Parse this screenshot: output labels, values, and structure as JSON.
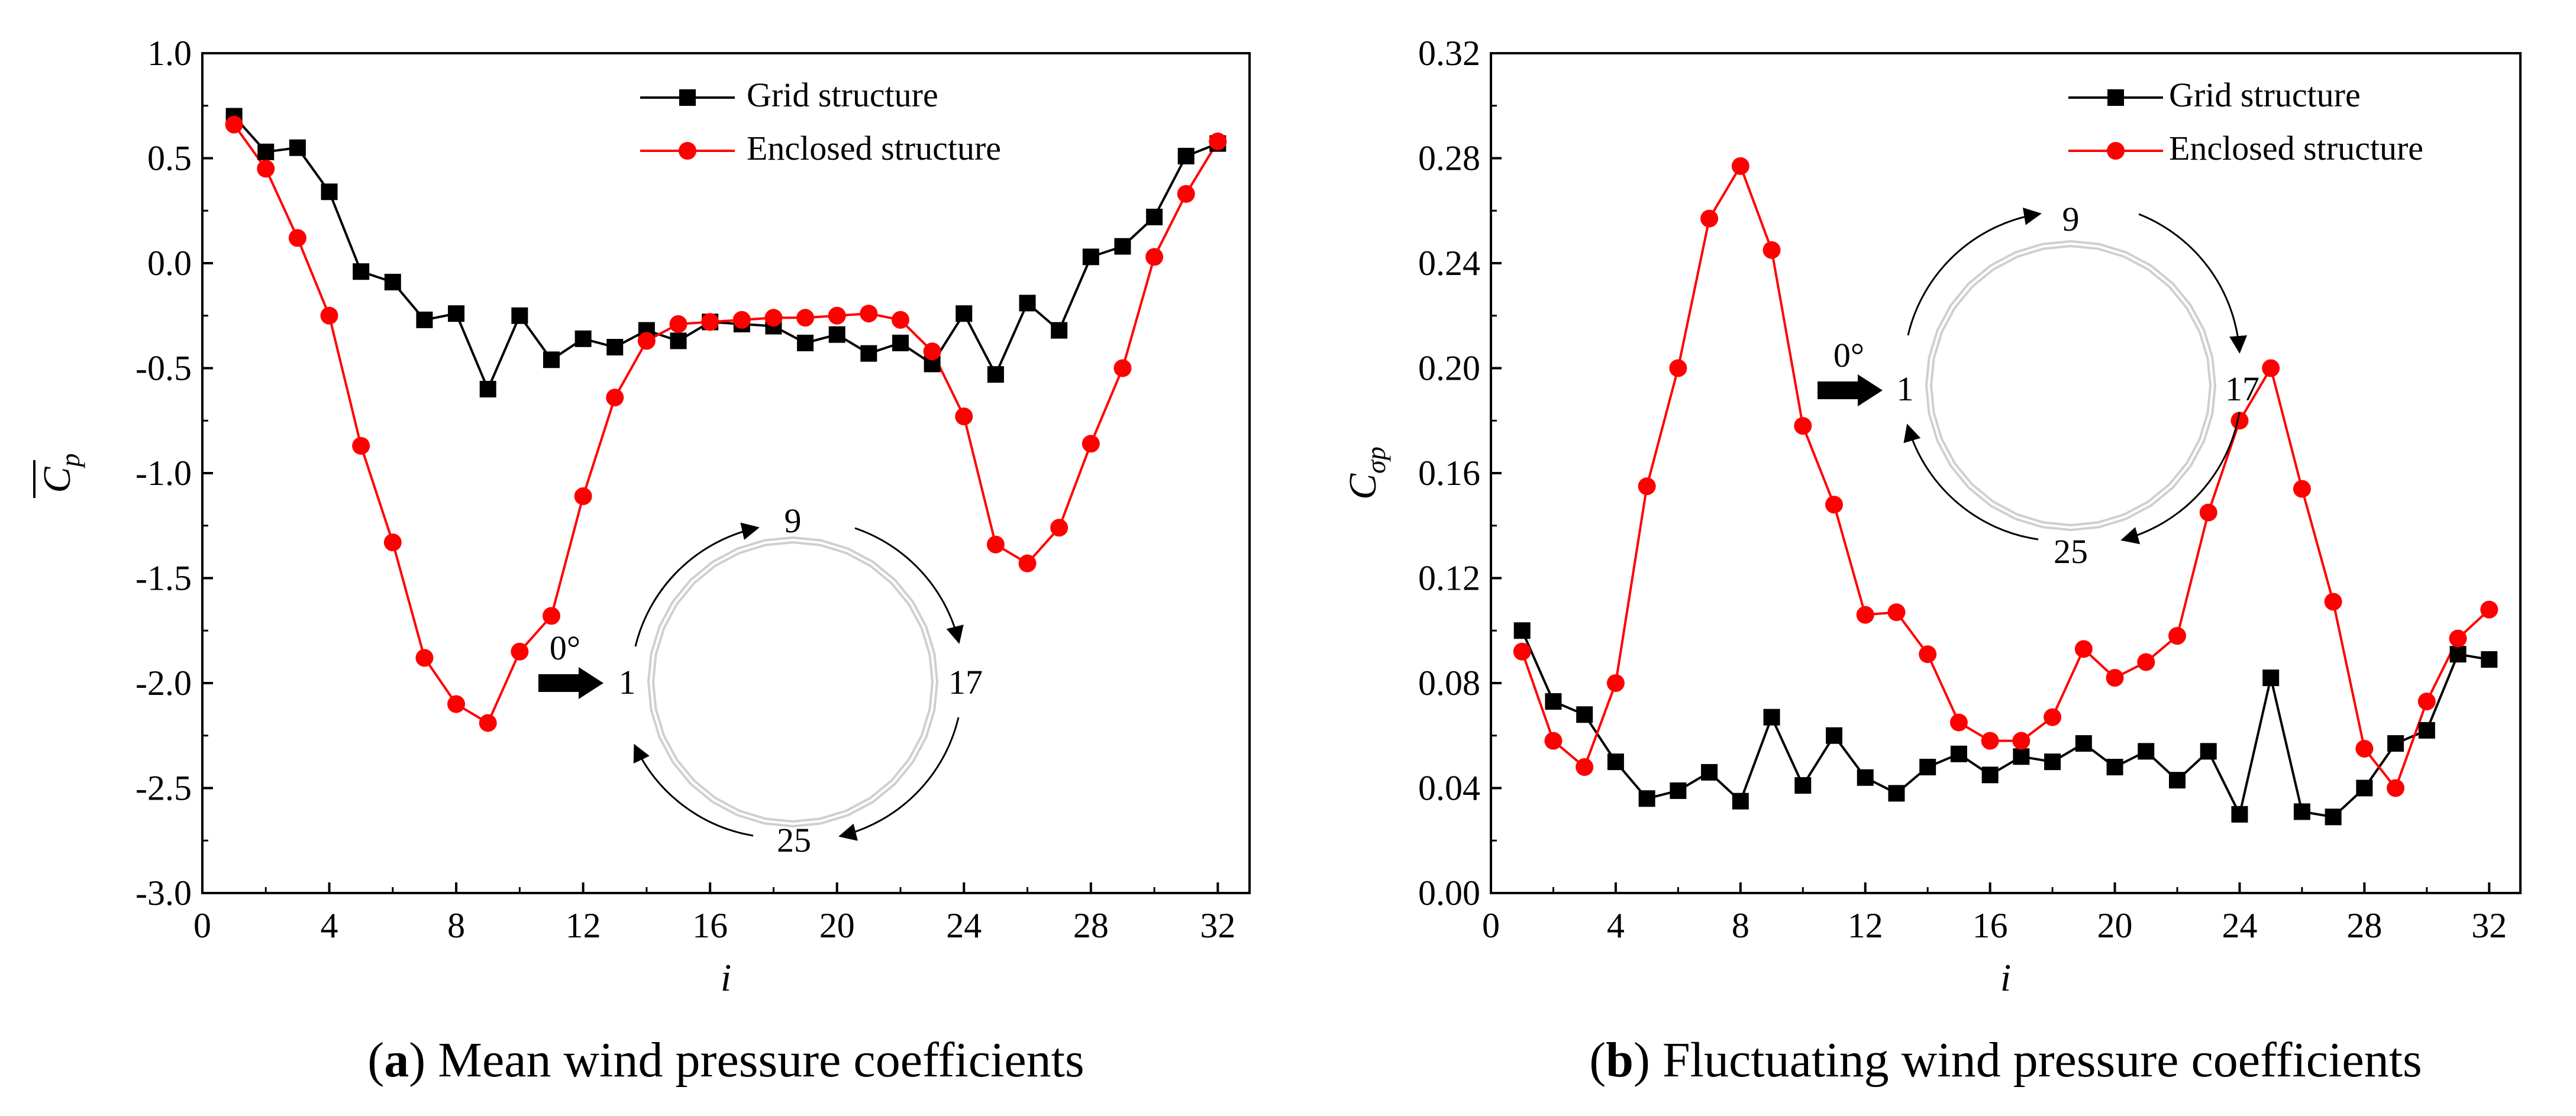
{
  "colors": {
    "grid_series": "#000000",
    "enclosed_series": "#ff0000",
    "ring": "#cfcfcf",
    "axis": "#000000"
  },
  "chart_data": [
    {
      "type": "line",
      "panel_label": "a",
      "caption": "Mean wind pressure coefficients",
      "xlabel": "i",
      "ylabel_symbol": "C",
      "ylabel_subscript": "p",
      "ylabel_overbar": true,
      "xlim": [
        0,
        33
      ],
      "ylim": [
        -3.0,
        1.0
      ],
      "xticks": [
        0,
        4,
        8,
        12,
        16,
        20,
        24,
        28,
        32
      ],
      "yticks": [
        -3.0,
        -2.5,
        -2.0,
        -1.5,
        -1.0,
        -0.5,
        0.0,
        0.5,
        1.0
      ],
      "ytick_labels": [
        "-3.0",
        "-2.5",
        "-2.0",
        "-1.5",
        "-1.0",
        "-0.5",
        "0.0",
        "0.5",
        "1.0"
      ],
      "legend_position": "top-right",
      "x": [
        1,
        2,
        3,
        4,
        5,
        6,
        7,
        8,
        9,
        10,
        11,
        12,
        13,
        14,
        15,
        16,
        17,
        18,
        19,
        20,
        21,
        22,
        23,
        24,
        25,
        26,
        27,
        28,
        29,
        30,
        31,
        32
      ],
      "series": [
        {
          "name": "Grid structure",
          "color": "#000000",
          "marker": "square",
          "values": [
            0.7,
            0.53,
            0.55,
            0.34,
            -0.04,
            -0.09,
            -0.27,
            -0.24,
            -0.6,
            -0.25,
            -0.46,
            -0.36,
            -0.4,
            -0.32,
            -0.37,
            -0.28,
            -0.29,
            -0.3,
            -0.38,
            -0.34,
            -0.43,
            -0.38,
            -0.48,
            -0.24,
            -0.53,
            -0.19,
            -0.32,
            0.03,
            0.08,
            0.22,
            0.51,
            0.57
          ]
        },
        {
          "name": "Enclosed structure",
          "color": "#ff0000",
          "marker": "circle",
          "values": [
            0.66,
            0.45,
            0.12,
            -0.25,
            -0.87,
            -1.33,
            -1.88,
            -2.1,
            -2.19,
            -1.85,
            -1.68,
            -1.11,
            -0.64,
            -0.37,
            -0.29,
            -0.28,
            -0.27,
            -0.26,
            -0.26,
            -0.25,
            -0.24,
            -0.27,
            -0.42,
            -0.73,
            -1.34,
            -1.43,
            -1.26,
            -0.86,
            -0.5,
            0.03,
            0.33,
            0.58
          ]
        }
      ],
      "inset": {
        "top_label": "9",
        "left_label": "1",
        "right_label": "17",
        "bottom_label": "25",
        "wind_label": "0°"
      }
    },
    {
      "type": "line",
      "panel_label": "b",
      "caption": "Fluctuating wind pressure coefficients",
      "xlabel": "i",
      "ylabel_symbol": "C",
      "ylabel_subscript": "σp",
      "ylabel_overbar": false,
      "xlim": [
        0,
        33
      ],
      "ylim": [
        0.0,
        0.32
      ],
      "xticks": [
        0,
        4,
        8,
        12,
        16,
        20,
        24,
        28,
        32
      ],
      "yticks": [
        0.0,
        0.04,
        0.08,
        0.12,
        0.16,
        0.2,
        0.24,
        0.28,
        0.32
      ],
      "ytick_labels": [
        "0.00",
        "0.04",
        "0.08",
        "0.12",
        "0.16",
        "0.20",
        "0.24",
        "0.28",
        "0.32"
      ],
      "legend_position": "top-right",
      "x": [
        1,
        2,
        3,
        4,
        5,
        6,
        7,
        8,
        9,
        10,
        11,
        12,
        13,
        14,
        15,
        16,
        17,
        18,
        19,
        20,
        21,
        22,
        23,
        24,
        25,
        26,
        27,
        28,
        29,
        30,
        31,
        32
      ],
      "series": [
        {
          "name": "Grid structure",
          "color": "#000000",
          "marker": "square",
          "values": [
            0.1,
            0.073,
            0.068,
            0.05,
            0.036,
            0.039,
            0.046,
            0.035,
            0.067,
            0.041,
            0.06,
            0.044,
            0.038,
            0.048,
            0.053,
            0.045,
            0.052,
            0.05,
            0.057,
            0.048,
            0.054,
            0.043,
            0.054,
            0.03,
            0.082,
            0.031,
            0.029,
            0.04,
            0.057,
            0.062,
            0.091,
            0.089
          ]
        },
        {
          "name": "Enclosed structure",
          "color": "#ff0000",
          "marker": "circle",
          "values": [
            0.092,
            0.058,
            0.048,
            0.08,
            0.155,
            0.2,
            0.257,
            0.277,
            0.245,
            0.178,
            0.148,
            0.106,
            0.107,
            0.091,
            0.065,
            0.058,
            0.058,
            0.067,
            0.093,
            0.082,
            0.088,
            0.098,
            0.145,
            0.18,
            0.2,
            0.154,
            0.111,
            0.055,
            0.04,
            0.073,
            0.097,
            0.108
          ]
        }
      ],
      "inset": {
        "top_label": "9",
        "left_label": "1",
        "right_label": "17",
        "bottom_label": "25",
        "wind_label": "0°"
      }
    }
  ]
}
